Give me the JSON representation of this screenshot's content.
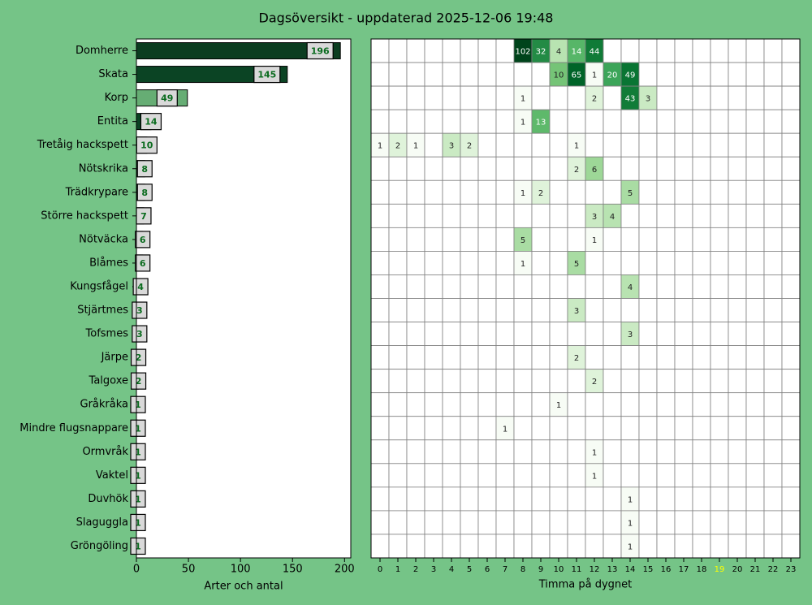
{
  "chart_data": [
    {
      "type": "bar",
      "orientation": "horizontal",
      "title": "Dagsöversikt - uppdaterad 2025-12-06 19:48",
      "categories": [
        "Domherre",
        "Skata",
        "Korp",
        "Entita",
        "Tretåig hackspett",
        "Nötskrika",
        "Trädkrypare",
        "Större hackspett",
        "Nötväcka",
        "Blåmes",
        "Kungsfågel",
        "Stjärtmes",
        "Tofsmes",
        "Järpe",
        "Talgoxe",
        "Gråkråka",
        "Mindre flugsnappare",
        "Ormvråk",
        "Vaktel",
        "Duvhök",
        "Slaguggla",
        "Gröngöling"
      ],
      "values": [
        196,
        145,
        49,
        14,
        10,
        8,
        8,
        7,
        6,
        6,
        4,
        3,
        3,
        2,
        2,
        1,
        1,
        1,
        1,
        1,
        1,
        1
      ],
      "colors": [
        "#0b3d20",
        "#0b4424",
        "#66ad74",
        "#0b4424",
        "#0b4424",
        "#0b4424",
        "#0b4424",
        "#0b4424",
        "#0b4424",
        "#0b4424",
        "#0b4424",
        "#0b4424",
        "#0b4424",
        "#0b4424",
        "#0b4424",
        "#0b4424",
        "#0b4424",
        "#0b4424",
        "#0b4424",
        "#0b4424",
        "#0b4424",
        "#0b4424"
      ],
      "xlim": [
        0,
        206
      ],
      "xticks": [
        0,
        50,
        100,
        150,
        200
      ],
      "xlabel": "Arter och antal"
    },
    {
      "type": "heatmap",
      "colormap": "Greens",
      "xlabel": "Timma på dygnet",
      "x": [
        0,
        1,
        2,
        3,
        4,
        5,
        6,
        7,
        8,
        9,
        10,
        11,
        12,
        13,
        14,
        15,
        16,
        17,
        18,
        19,
        20,
        21,
        22,
        23
      ],
      "highlight_x": 19,
      "highlight_color": "#ffff00",
      "values": [
        [
          null,
          null,
          null,
          null,
          null,
          null,
          null,
          null,
          102,
          32,
          4,
          14,
          44,
          null,
          null,
          null,
          null,
          null,
          null,
          null,
          null,
          null,
          null,
          null
        ],
        [
          null,
          null,
          null,
          null,
          null,
          null,
          null,
          null,
          null,
          null,
          10,
          65,
          1,
          20,
          49,
          null,
          null,
          null,
          null,
          null,
          null,
          null,
          null,
          null
        ],
        [
          null,
          null,
          null,
          null,
          null,
          null,
          null,
          null,
          1,
          null,
          null,
          null,
          2,
          null,
          43,
          3,
          null,
          null,
          null,
          null,
          null,
          null,
          null,
          null
        ],
        [
          null,
          null,
          null,
          null,
          null,
          null,
          null,
          null,
          1,
          13,
          null,
          null,
          null,
          null,
          null,
          null,
          null,
          null,
          null,
          null,
          null,
          null,
          null,
          null
        ],
        [
          1,
          2,
          1,
          null,
          3,
          2,
          null,
          null,
          null,
          null,
          null,
          1,
          null,
          null,
          null,
          null,
          null,
          null,
          null,
          null,
          null,
          null,
          null,
          null
        ],
        [
          null,
          null,
          null,
          null,
          null,
          null,
          null,
          null,
          null,
          null,
          null,
          2,
          6,
          null,
          null,
          null,
          null,
          null,
          null,
          null,
          null,
          null,
          null,
          null
        ],
        [
          null,
          null,
          null,
          null,
          null,
          null,
          null,
          null,
          1,
          2,
          null,
          null,
          null,
          null,
          5,
          null,
          null,
          null,
          null,
          null,
          null,
          null,
          null,
          null
        ],
        [
          null,
          null,
          null,
          null,
          null,
          null,
          null,
          null,
          null,
          null,
          null,
          null,
          3,
          4,
          null,
          null,
          null,
          null,
          null,
          null,
          null,
          null,
          null,
          null
        ],
        [
          null,
          null,
          null,
          null,
          null,
          null,
          null,
          null,
          5,
          null,
          null,
          null,
          1,
          null,
          null,
          null,
          null,
          null,
          null,
          null,
          null,
          null,
          null,
          null
        ],
        [
          null,
          null,
          null,
          null,
          null,
          null,
          null,
          null,
          1,
          null,
          null,
          5,
          null,
          null,
          null,
          null,
          null,
          null,
          null,
          null,
          null,
          null,
          null,
          null
        ],
        [
          null,
          null,
          null,
          null,
          null,
          null,
          null,
          null,
          null,
          null,
          null,
          null,
          null,
          null,
          4,
          null,
          null,
          null,
          null,
          null,
          null,
          null,
          null,
          null
        ],
        [
          null,
          null,
          null,
          null,
          null,
          null,
          null,
          null,
          null,
          null,
          null,
          3,
          null,
          null,
          null,
          null,
          null,
          null,
          null,
          null,
          null,
          null,
          null,
          null
        ],
        [
          null,
          null,
          null,
          null,
          null,
          null,
          null,
          null,
          null,
          null,
          null,
          null,
          null,
          null,
          3,
          null,
          null,
          null,
          null,
          null,
          null,
          null,
          null,
          null
        ],
        [
          null,
          null,
          null,
          null,
          null,
          null,
          null,
          null,
          null,
          null,
          null,
          2,
          null,
          null,
          null,
          null,
          null,
          null,
          null,
          null,
          null,
          null,
          null,
          null
        ],
        [
          null,
          null,
          null,
          null,
          null,
          null,
          null,
          null,
          null,
          null,
          null,
          null,
          2,
          null,
          null,
          null,
          null,
          null,
          null,
          null,
          null,
          null,
          null,
          null
        ],
        [
          null,
          null,
          null,
          null,
          null,
          null,
          null,
          null,
          null,
          null,
          1,
          null,
          null,
          null,
          null,
          null,
          null,
          null,
          null,
          null,
          null,
          null,
          null,
          null
        ],
        [
          null,
          null,
          null,
          null,
          null,
          null,
          null,
          1,
          null,
          null,
          null,
          null,
          null,
          null,
          null,
          null,
          null,
          null,
          null,
          null,
          null,
          null,
          null,
          null
        ],
        [
          null,
          null,
          null,
          null,
          null,
          null,
          null,
          null,
          null,
          null,
          null,
          null,
          1,
          null,
          null,
          null,
          null,
          null,
          null,
          null,
          null,
          null,
          null,
          null
        ],
        [
          null,
          null,
          null,
          null,
          null,
          null,
          null,
          null,
          null,
          null,
          null,
          null,
          1,
          null,
          null,
          null,
          null,
          null,
          null,
          null,
          null,
          null,
          null,
          null
        ],
        [
          null,
          null,
          null,
          null,
          null,
          null,
          null,
          null,
          null,
          null,
          null,
          null,
          null,
          null,
          1,
          null,
          null,
          null,
          null,
          null,
          null,
          null,
          null,
          null
        ],
        [
          null,
          null,
          null,
          null,
          null,
          null,
          null,
          null,
          null,
          null,
          null,
          null,
          null,
          null,
          1,
          null,
          null,
          null,
          null,
          null,
          null,
          null,
          null,
          null
        ],
        [
          null,
          null,
          null,
          null,
          null,
          null,
          null,
          null,
          null,
          null,
          null,
          null,
          null,
          null,
          1,
          null,
          null,
          null,
          null,
          null,
          null,
          null,
          null,
          null
        ]
      ]
    }
  ]
}
